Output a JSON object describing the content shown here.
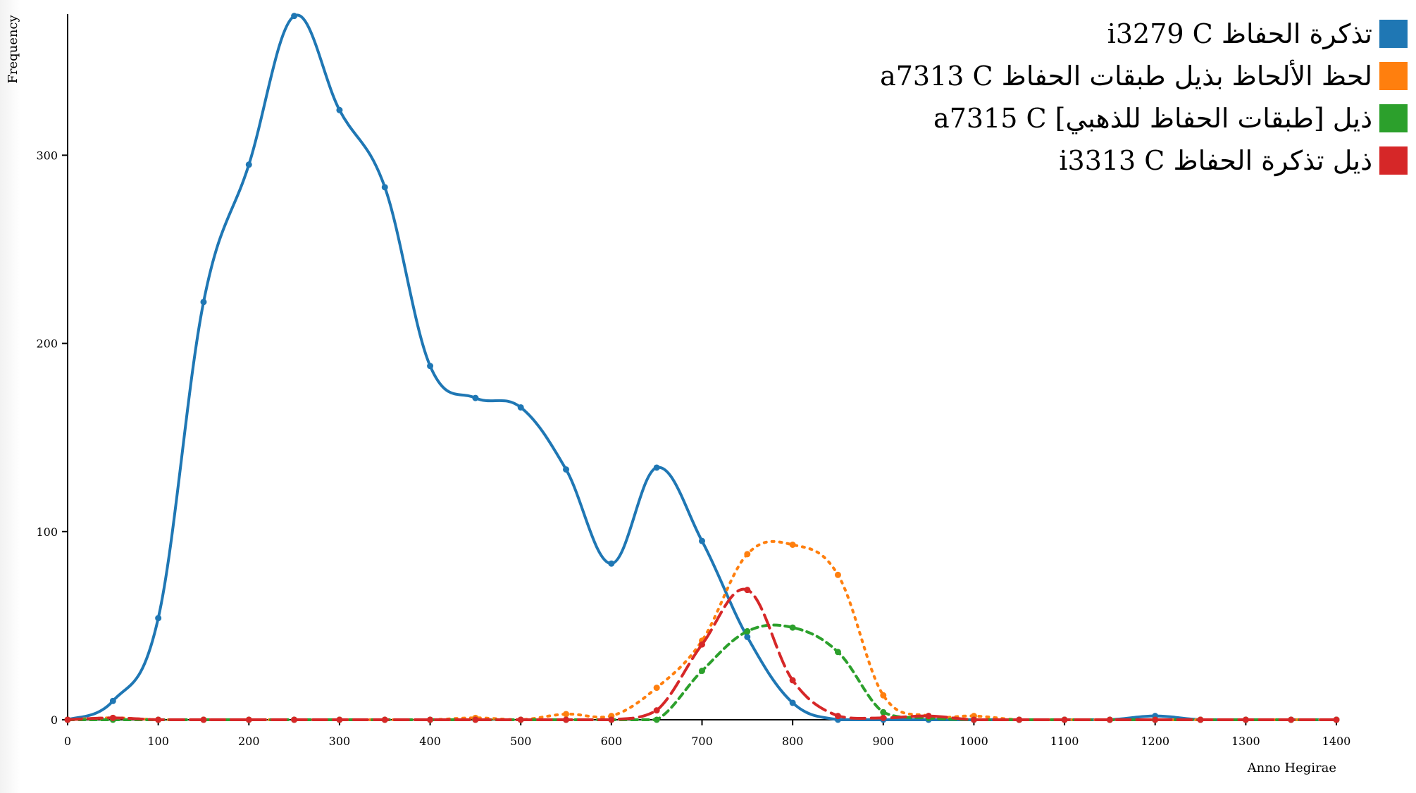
{
  "chart_data": {
    "type": "line",
    "xlabel": "Anno Hegirae",
    "ylabel": "Frequency",
    "xlim": [
      0,
      1400
    ],
    "ylim": [
      0,
      375
    ],
    "xticks": [
      0,
      100,
      200,
      300,
      400,
      500,
      600,
      700,
      800,
      900,
      1000,
      1100,
      1200,
      1300,
      1400
    ],
    "yticks": [
      0,
      100,
      200,
      300
    ],
    "grid": false,
    "legend_position": "top-right",
    "x": [
      0,
      50,
      100,
      150,
      200,
      250,
      300,
      350,
      400,
      450,
      500,
      550,
      600,
      650,
      700,
      750,
      800,
      850,
      900,
      950,
      1000,
      1050,
      1100,
      1150,
      1200,
      1250,
      1300,
      1350,
      1400
    ],
    "series": [
      {
        "name": "تذكرة الحفاظ i3279 C",
        "color": "#1f77b4",
        "dash": "solid",
        "values": [
          0,
          10,
          54,
          222,
          295,
          374,
          324,
          283,
          188,
          171,
          166,
          133,
          83,
          134,
          95,
          44,
          9,
          0,
          0,
          0,
          0,
          0,
          0,
          0,
          2,
          0,
          0,
          0,
          0
        ]
      },
      {
        "name": "لحظ الألحاظ بذيل طبقات الحفاظ a7313 C",
        "color": "#ff7f0e",
        "dash": "dotted",
        "values": [
          0,
          1,
          0,
          0,
          0,
          0,
          0,
          0,
          0,
          1,
          0,
          3,
          2,
          17,
          42,
          88,
          93,
          77,
          13,
          2,
          2,
          0,
          0,
          0,
          0,
          0,
          0,
          0,
          0
        ]
      },
      {
        "name": "ذيل [طبقات الحفاظ للذهبي] a7315 C",
        "color": "#2ca02c",
        "dash": "dashed",
        "values": [
          0,
          0,
          0,
          0,
          0,
          0,
          0,
          0,
          0,
          0,
          0,
          0,
          0,
          0,
          26,
          47,
          49,
          36,
          4,
          1,
          0,
          0,
          0,
          0,
          0,
          0,
          0,
          0,
          0
        ]
      },
      {
        "name": "ذيل تذكرة الحفاظ i3313 C",
        "color": "#d62728",
        "dash": "longdash",
        "values": [
          0,
          1,
          0,
          0,
          0,
          0,
          0,
          0,
          0,
          0,
          0,
          0,
          0,
          5,
          40,
          69,
          21,
          2,
          1,
          2,
          0,
          0,
          0,
          0,
          0,
          0,
          0,
          0,
          0
        ]
      }
    ]
  }
}
